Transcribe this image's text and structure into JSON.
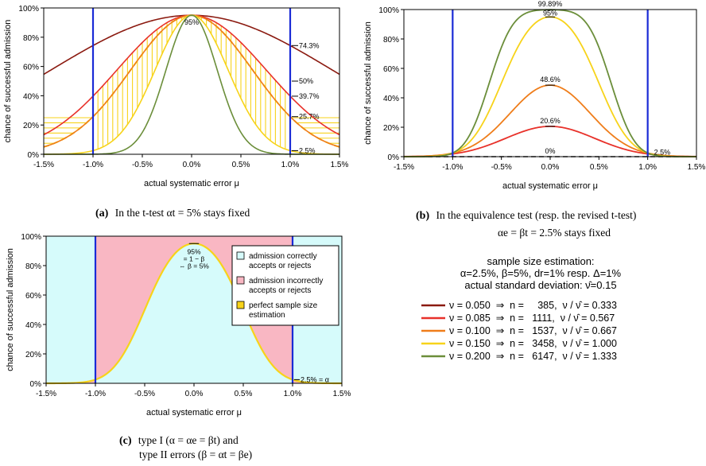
{
  "charts": [
    {
      "id": "a",
      "type": "line",
      "xlabel": "actual systematic error μ",
      "ylabel": "chance of successful admission",
      "xlim": [
        -1.5,
        1.5
      ],
      "ylim": [
        0,
        100
      ],
      "xticks": [
        "-1.5%",
        "-1.0%",
        "-0.5%",
        "0.0%",
        "0.5%",
        "1.0%",
        "1.5%"
      ],
      "yticks": [
        "0%",
        "20%",
        "40%",
        "60%",
        "80%",
        "100%"
      ],
      "boundaries": [
        -1.0,
        1.0
      ],
      "annotations": [
        "95%",
        "74.3%",
        "50%",
        "39.7%",
        "25.7%",
        "2.5%"
      ],
      "caption_label": "(a)",
      "caption_text": "In the t-test αt = 5% stays fixed",
      "series": [
        {
          "nu": 0.05,
          "color": "#8b1a10",
          "center": 95,
          "at_boundary": 74.3
        },
        {
          "nu": 0.085,
          "color": "#e8312a",
          "center": 95,
          "at_boundary": 39.7
        },
        {
          "nu": 0.1,
          "color": "#ef7d1a",
          "center": 95,
          "at_boundary": 25.7
        },
        {
          "nu": 0.15,
          "color": "#f7d31a",
          "center": 95,
          "at_boundary": 2.5
        },
        {
          "nu": 0.2,
          "color": "#6b8e3a",
          "center": 95,
          "at_boundary": 0.02
        }
      ]
    },
    {
      "id": "b",
      "type": "line",
      "xlabel": "actual systematic error μ",
      "ylabel": "chance of successful admission",
      "xlim": [
        -1.5,
        1.5
      ],
      "ylim": [
        0,
        100
      ],
      "xticks": [
        "-1.5%",
        "-1.0%",
        "-0.5%",
        "0.0%",
        "0.5%",
        "1.0%",
        "1.5%"
      ],
      "yticks": [
        "0%",
        "20%",
        "40%",
        "60%",
        "80%",
        "100%"
      ],
      "boundaries": [
        -1.0,
        1.0
      ],
      "annotations": [
        "99.89%",
        "95%",
        "48.6%",
        "20.6%",
        "0%",
        "2.5%"
      ],
      "caption_label": "(b)",
      "caption_text": "In the equivalence test (resp. the revised t-test)",
      "caption_text2": "αe = βt = 2.5% stays fixed",
      "series": [
        {
          "nu": 0.05,
          "color": "#8b1a10",
          "peak": 0
        },
        {
          "nu": 0.085,
          "color": "#e8312a",
          "peak": 20.6
        },
        {
          "nu": 0.1,
          "color": "#ef7d1a",
          "peak": 48.6
        },
        {
          "nu": 0.15,
          "color": "#f7d31a",
          "peak": 95
        },
        {
          "nu": 0.2,
          "color": "#6b8e3a",
          "peak": 99.89
        }
      ]
    },
    {
      "id": "c",
      "type": "area",
      "xlabel": "actual systematic error μ",
      "ylabel": "chance of successful admission",
      "xlim": [
        -1.5,
        1.5
      ],
      "ylim": [
        0,
        100
      ],
      "xticks": [
        "-1.5%",
        "-1.0%",
        "-0.5%",
        "0.0%",
        "0.5%",
        "1.0%",
        "1.5%"
      ],
      "yticks": [
        "0%",
        "20%",
        "40%",
        "60%",
        "80%",
        "100%"
      ],
      "boundaries": [
        -1.0,
        1.0
      ],
      "annotation_center": [
        "95%",
        "= 1 − β",
        "⇔ β = 5%"
      ],
      "annotation_alpha": "2.5% = α",
      "caption_label": "(c)",
      "caption_text": "type I (α = αe = βt) and",
      "caption_text2": "type II errors (β = αt = βe)",
      "legend": [
        {
          "label": [
            "admission correctly",
            "accepts or rejects"
          ],
          "color": "#d6fbfb"
        },
        {
          "label": [
            "admission incorrectly",
            "accepts or rejects"
          ],
          "color": "#f9b7c3"
        },
        {
          "label": [
            "perfect sample size",
            "estimation"
          ],
          "color": "#f7d31a"
        }
      ],
      "legend_placement": "top-right"
    }
  ],
  "info": {
    "heading": "sample size estimation:",
    "line1": "α=2.5%, β=5%, dr=1% resp. Δ=1%",
    "line2": "actual standard deviation: ν̂=0.15",
    "rows": [
      {
        "text": "ν = 0.050  ⇒  n =     385,  ν / ν̂ = 0.333",
        "color": "#8b1a10"
      },
      {
        "text": "ν = 0.085  ⇒  n =   1111,  ν / ν̂ = 0.567",
        "color": "#e8312a"
      },
      {
        "text": "ν = 0.100  ⇒  n =   1537,  ν / ν̂ = 0.667",
        "color": "#ef7d1a"
      },
      {
        "text": "ν = 0.150  ⇒  n =   3458,  ν / ν̂ = 1.000",
        "color": "#f7d31a"
      },
      {
        "text": "ν = 0.200  ⇒  n =   6147,  ν / ν̂ = 1.333",
        "color": "#6b8e3a"
      }
    ]
  },
  "chart_data": [
    {
      "type": "line",
      "title": "",
      "xlabel": "actual systematic error μ",
      "ylabel": "chance of successful admission",
      "xlim": [
        -1.5,
        1.5
      ],
      "ylim": [
        0,
        100
      ],
      "series": [
        {
          "name": "ν = 0.050",
          "x": [
            -1.5,
            -1.0,
            0.0,
            1.0,
            1.5
          ],
          "y": [
            50,
            74.3,
            95,
            74.3,
            50
          ]
        },
        {
          "name": "ν = 0.085",
          "x": [
            -1.5,
            -1.0,
            0.0,
            1.0,
            1.5
          ],
          "y": [
            10,
            39.7,
            95,
            39.7,
            10
          ]
        },
        {
          "name": "ν = 0.100",
          "x": [
            -1.5,
            -1.0,
            0.0,
            1.0,
            1.5
          ],
          "y": [
            3,
            25.7,
            95,
            25.7,
            3
          ]
        },
        {
          "name": "ν = 0.150",
          "x": [
            -1.5,
            -1.0,
            0.0,
            1.0,
            1.5
          ],
          "y": [
            0.1,
            2.5,
            95,
            2.5,
            0.1
          ]
        },
        {
          "name": "ν = 0.200",
          "x": [
            -1.5,
            -1.0,
            0.0,
            1.0,
            1.5
          ],
          "y": [
            0,
            0,
            95,
            0,
            0
          ]
        }
      ]
    },
    {
      "type": "line",
      "title": "",
      "xlabel": "actual systematic error μ",
      "ylabel": "chance of successful admission",
      "xlim": [
        -1.5,
        1.5
      ],
      "ylim": [
        0,
        100
      ],
      "series": [
        {
          "name": "ν = 0.050",
          "x": [
            -1.5,
            -1.0,
            0.0,
            1.0,
            1.5
          ],
          "y": [
            0,
            0,
            0,
            0,
            0
          ]
        },
        {
          "name": "ν = 0.085",
          "x": [
            -1.5,
            -1.0,
            0.0,
            1.0,
            1.5
          ],
          "y": [
            0,
            2.5,
            20.6,
            2.5,
            0
          ]
        },
        {
          "name": "ν = 0.100",
          "x": [
            -1.5,
            -1.0,
            0.0,
            1.0,
            1.5
          ],
          "y": [
            0,
            2.5,
            48.6,
            2.5,
            0
          ]
        },
        {
          "name": "ν = 0.150",
          "x": [
            -1.5,
            -1.0,
            0.0,
            1.0,
            1.5
          ],
          "y": [
            0,
            2.5,
            95,
            2.5,
            0
          ]
        },
        {
          "name": "ν = 0.200",
          "x": [
            -1.5,
            -1.0,
            0.0,
            1.0,
            1.5
          ],
          "y": [
            0,
            2.5,
            99.89,
            2.5,
            0
          ]
        }
      ]
    },
    {
      "type": "area",
      "title": "",
      "xlabel": "actual systematic error μ",
      "ylabel": "chance of successful admission",
      "xlim": [
        -1.5,
        1.5
      ],
      "ylim": [
        0,
        100
      ],
      "series": [
        {
          "name": "perfect sample size estimation",
          "x": [
            -1.5,
            -1.0,
            0.0,
            1.0,
            1.5
          ],
          "y": [
            0,
            2.5,
            95,
            2.5,
            0
          ]
        }
      ]
    }
  ]
}
